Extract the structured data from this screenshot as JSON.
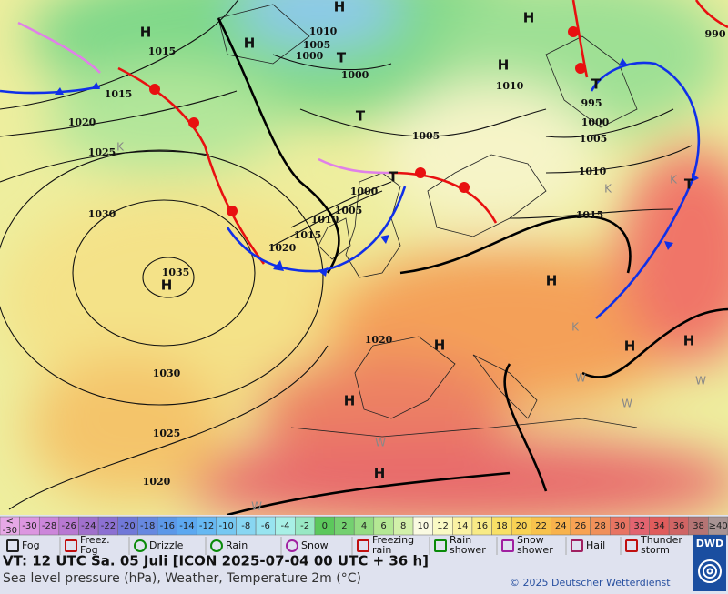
{
  "map": {
    "isobar_labels": [
      "1010",
      "1005",
      "1000",
      "1015",
      "1015",
      "1020",
      "1025",
      "1030",
      "1035",
      "1000",
      "1005",
      "1010",
      "995",
      "1000",
      "1005",
      "1010",
      "1015",
      "1000",
      "1005",
      "1010",
      "1015",
      "1020",
      "1020",
      "1030",
      "1025",
      "1020",
      "990"
    ],
    "highs": [
      "H",
      "H",
      "H",
      "H",
      "H",
      "H",
      "H",
      "H",
      "H",
      "H",
      "H",
      "H"
    ],
    "lows": [
      "T",
      "T",
      "T",
      "T",
      "T"
    ],
    "other_labels": [
      "K",
      "K",
      "K",
      "K",
      "W",
      "W",
      "W",
      "W",
      "W"
    ]
  },
  "scale": [
    {
      "label_top": "<",
      "label": "-30",
      "color": "#e6a8e6"
    },
    {
      "label": "-30",
      "color": "#dc96e0"
    },
    {
      "label": "-28",
      "color": "#cc86da"
    },
    {
      "label": "-26",
      "color": "#b878d2"
    },
    {
      "label": "-24",
      "color": "#a070cc"
    },
    {
      "label": "-22",
      "color": "#8c70d2"
    },
    {
      "label": "-20",
      "color": "#7078d8"
    },
    {
      "label": "-18",
      "color": "#6688e0"
    },
    {
      "label": "-16",
      "color": "#5c98e8"
    },
    {
      "label": "-14",
      "color": "#5ca8f0"
    },
    {
      "label": "-12",
      "color": "#66b8f2"
    },
    {
      "label": "-10",
      "color": "#76c8f2"
    },
    {
      "label": "-8",
      "color": "#88d6f2"
    },
    {
      "label": "-6",
      "color": "#98e4f0"
    },
    {
      "label": "-4",
      "color": "#a8f0e6"
    },
    {
      "label": "-2",
      "color": "#98e8c4"
    },
    {
      "label": "0",
      "color": "#5cc85c"
    },
    {
      "label": "2",
      "color": "#74d070"
    },
    {
      "label": "4",
      "color": "#94dc82"
    },
    {
      "label": "6",
      "color": "#b4e894"
    },
    {
      "label": "8",
      "color": "#d2f0aa"
    },
    {
      "label": "10",
      "color": "#fafae2"
    },
    {
      "label": "12",
      "color": "#fafac4"
    },
    {
      "label": "14",
      "color": "#faf2a4"
    },
    {
      "label": "16",
      "color": "#f8ea86"
    },
    {
      "label": "18",
      "color": "#f8e066"
    },
    {
      "label": "20",
      "color": "#f8d254"
    },
    {
      "label": "22",
      "color": "#f8c24c"
    },
    {
      "label": "24",
      "color": "#f8b24c"
    },
    {
      "label": "26",
      "color": "#f8a254"
    },
    {
      "label": "28",
      "color": "#f0905a"
    },
    {
      "label": "30",
      "color": "#e87462"
    },
    {
      "label": "32",
      "color": "#e26470"
    },
    {
      "label": "34",
      "color": "#e05c5c"
    },
    {
      "label": "36",
      "color": "#d06464"
    },
    {
      "label": "38",
      "color": "#b47474"
    },
    {
      "label": "≥40",
      "color": "#a89494"
    }
  ],
  "legend": [
    {
      "lines": [
        "Fog"
      ]
    },
    {
      "lines": [
        "Freez.",
        "Fog"
      ]
    },
    {
      "lines": [
        "Drizzle"
      ]
    },
    {
      "lines": [
        "Rain"
      ]
    },
    {
      "lines": [
        "Snow"
      ]
    },
    {
      "lines": [
        "Freezing",
        "rain"
      ]
    },
    {
      "lines": [
        "Rain",
        "shower"
      ]
    },
    {
      "lines": [
        "Snow",
        "shower"
      ]
    },
    {
      "lines": [
        "Hail"
      ]
    },
    {
      "lines": [
        "Thunder",
        "storm"
      ]
    }
  ],
  "footer": {
    "valid_time": "VT: 12 UTC Sa.  05 Juli [ICON 2025-07-04  00 UTC + 36 h]",
    "description": "Sea level pressure (hPa), Weather, Temperature 2m (°C)",
    "copyright": "© 2025 Deutscher Wetterdienst",
    "logo": "DWD"
  }
}
